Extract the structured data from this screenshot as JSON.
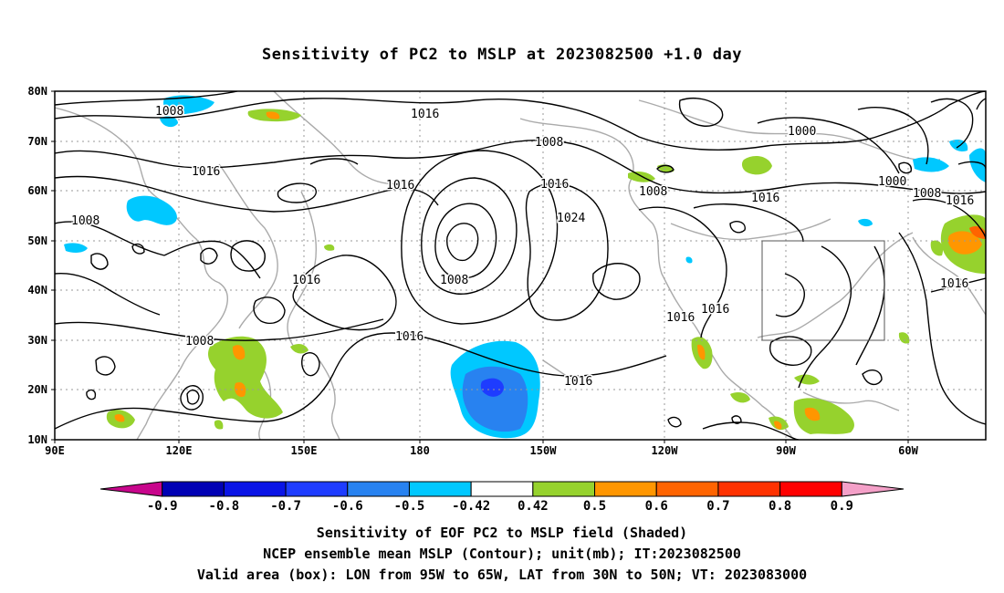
{
  "title": "Sensitivity of PC2 to MSLP at 2023082500 +1.0 day",
  "map": {
    "lon_ticks": [
      "90E",
      "120E",
      "150E",
      "180",
      "150W",
      "120W",
      "90W",
      "60W"
    ],
    "lat_ticks": [
      "80N",
      "70N",
      "60N",
      "50N",
      "40N",
      "30N",
      "20N",
      "10N"
    ],
    "valid_box": {
      "lon_range": [
        "95W",
        "65W"
      ],
      "lat_range": [
        "30N",
        "50N"
      ]
    },
    "contour_labels": [
      "1016",
      "1008",
      "1016",
      "1016",
      "1008",
      "1016",
      "1008",
      "1008",
      "1016",
      "1000",
      "1000",
      "1008",
      "1016",
      "1024",
      "1016",
      "1016",
      "1008",
      "1016",
      "1016",
      "1008",
      "1016",
      "1016"
    ],
    "colors": {
      "land": "#aaaaaa",
      "contour": "#000000",
      "grid": "#999999",
      "box": "#555555"
    }
  },
  "colorbar": {
    "labels": [
      "-0.9",
      "-0.8",
      "-0.7",
      "-0.6",
      "-0.5",
      "-0.42",
      "0.42",
      "0.5",
      "0.6",
      "0.7",
      "0.8",
      "0.9"
    ],
    "colors": [
      "#c8068c",
      "#0000b4",
      "#0a14e6",
      "#1e3cff",
      "#2882f0",
      "#00c8ff",
      "#ffffff",
      "#96d22d",
      "#ff9600",
      "#ff6400",
      "#ff3200",
      "#ff0000",
      "#f4a0c8"
    ]
  },
  "caption": {
    "line1": "Sensitivity of EOF PC2 to MSLP field (Shaded)",
    "line2": "NCEP ensemble mean MSLP (Contour); unit(mb); IT:2023082500",
    "line3": "Valid area (box): LON from 95W to 65W, LAT from 30N to 50N; VT: 2023083000"
  }
}
